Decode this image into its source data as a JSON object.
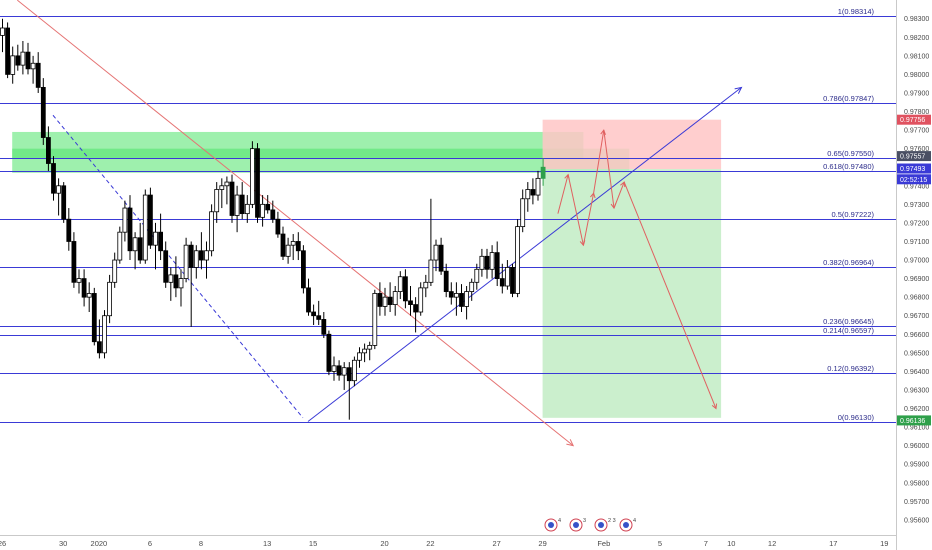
{
  "chart_data": {
    "type": "candlestick",
    "title": "",
    "xlabel": "",
    "ylabel": "",
    "ylim": [
      0.95551,
      0.98347
    ],
    "y_ticks": [
      "0.98300",
      "0.98200",
      "0.98100",
      "0.98000",
      "0.97900",
      "0.97800",
      "0.97700",
      "0.97600",
      "0.97500",
      "0.97400",
      "0.97300",
      "0.97200",
      "0.97100",
      "0.97000",
      "0.96900",
      "0.96800",
      "0.96700",
      "0.96600",
      "0.96500",
      "0.96400",
      "0.96300",
      "0.96200",
      "0.96100",
      "0.96000",
      "0.95900",
      "0.95800",
      "0.95700",
      "0.95600"
    ],
    "x_ticks": [
      {
        "label": "26",
        "bar": 0
      },
      {
        "label": "30",
        "bar": 12
      },
      {
        "label": "2020",
        "bar": 19
      },
      {
        "label": "6",
        "bar": 29
      },
      {
        "label": "8",
        "bar": 39
      },
      {
        "label": "13",
        "bar": 52
      },
      {
        "label": "15",
        "bar": 61
      },
      {
        "label": "20",
        "bar": 75
      },
      {
        "label": "22",
        "bar": 84
      },
      {
        "label": "27",
        "bar": 97
      },
      {
        "label": "29",
        "bar": 106
      },
      {
        "label": "Feb",
        "bar": 118
      },
      {
        "label": "5",
        "bar": 129
      },
      {
        "label": "7",
        "bar": 138
      },
      {
        "label": "10",
        "bar": 143
      },
      {
        "label": "12",
        "bar": 151
      },
      {
        "label": "17",
        "bar": 163
      },
      {
        "label": "19",
        "bar": 173
      }
    ],
    "candles": [
      {
        "o": 0.9821,
        "h": 0.983,
        "l": 0.9812,
        "c": 0.9825
      },
      {
        "o": 0.9825,
        "h": 0.9828,
        "l": 0.9798,
        "c": 0.98
      },
      {
        "o": 0.98,
        "h": 0.9815,
        "l": 0.9795,
        "c": 0.981
      },
      {
        "o": 0.981,
        "h": 0.9816,
        "l": 0.9802,
        "c": 0.9805
      },
      {
        "o": 0.9805,
        "h": 0.9818,
        "l": 0.98,
        "c": 0.9812
      },
      {
        "o": 0.9812,
        "h": 0.9817,
        "l": 0.98,
        "c": 0.9803
      },
      {
        "o": 0.9803,
        "h": 0.981,
        "l": 0.9795,
        "c": 0.9806
      },
      {
        "o": 0.9806,
        "h": 0.9812,
        "l": 0.979,
        "c": 0.9793
      },
      {
        "o": 0.9793,
        "h": 0.9798,
        "l": 0.9762,
        "c": 0.9766
      },
      {
        "o": 0.9766,
        "h": 0.9772,
        "l": 0.9748,
        "c": 0.9752
      },
      {
        "o": 0.9752,
        "h": 0.9756,
        "l": 0.9732,
        "c": 0.9736
      },
      {
        "o": 0.9736,
        "h": 0.9744,
        "l": 0.9724,
        "c": 0.974
      },
      {
        "o": 0.974,
        "h": 0.9742,
        "l": 0.972,
        "c": 0.9722
      },
      {
        "o": 0.9722,
        "h": 0.9728,
        "l": 0.9705,
        "c": 0.971
      },
      {
        "o": 0.971,
        "h": 0.9715,
        "l": 0.9685,
        "c": 0.9688
      },
      {
        "o": 0.9688,
        "h": 0.9695,
        "l": 0.9682,
        "c": 0.969
      },
      {
        "o": 0.969,
        "h": 0.9695,
        "l": 0.9675,
        "c": 0.968
      },
      {
        "o": 0.968,
        "h": 0.9688,
        "l": 0.9672,
        "c": 0.9682
      },
      {
        "o": 0.9682,
        "h": 0.9685,
        "l": 0.9654,
        "c": 0.9656
      },
      {
        "o": 0.9656,
        "h": 0.9668,
        "l": 0.9647,
        "c": 0.965
      },
      {
        "o": 0.965,
        "h": 0.9673,
        "l": 0.9647,
        "c": 0.967
      },
      {
        "o": 0.967,
        "h": 0.9692,
        "l": 0.9666,
        "c": 0.9688
      },
      {
        "o": 0.9688,
        "h": 0.9704,
        "l": 0.9685,
        "c": 0.97
      },
      {
        "o": 0.97,
        "h": 0.9718,
        "l": 0.9698,
        "c": 0.9715
      },
      {
        "o": 0.9715,
        "h": 0.9732,
        "l": 0.971,
        "c": 0.9728
      },
      {
        "o": 0.9728,
        "h": 0.9735,
        "l": 0.97,
        "c": 0.9705
      },
      {
        "o": 0.9705,
        "h": 0.9715,
        "l": 0.9695,
        "c": 0.9712
      },
      {
        "o": 0.9712,
        "h": 0.972,
        "l": 0.9698,
        "c": 0.97
      },
      {
        "o": 0.97,
        "h": 0.9738,
        "l": 0.9698,
        "c": 0.9735
      },
      {
        "o": 0.9735,
        "h": 0.9739,
        "l": 0.9706,
        "c": 0.9708
      },
      {
        "o": 0.9708,
        "h": 0.972,
        "l": 0.9695,
        "c": 0.9715
      },
      {
        "o": 0.9715,
        "h": 0.9725,
        "l": 0.97,
        "c": 0.9705
      },
      {
        "o": 0.9705,
        "h": 0.971,
        "l": 0.9685,
        "c": 0.9688
      },
      {
        "o": 0.9688,
        "h": 0.9696,
        "l": 0.9678,
        "c": 0.9692
      },
      {
        "o": 0.9692,
        "h": 0.9702,
        "l": 0.968,
        "c": 0.9685
      },
      {
        "o": 0.9685,
        "h": 0.9695,
        "l": 0.9675,
        "c": 0.969
      },
      {
        "o": 0.969,
        "h": 0.9712,
        "l": 0.9688,
        "c": 0.9708
      },
      {
        "o": 0.9708,
        "h": 0.971,
        "l": 0.9664,
        "c": 0.9696
      },
      {
        "o": 0.9696,
        "h": 0.9708,
        "l": 0.969,
        "c": 0.9705
      },
      {
        "o": 0.9705,
        "h": 0.9715,
        "l": 0.9695,
        "c": 0.97
      },
      {
        "o": 0.97,
        "h": 0.971,
        "l": 0.969,
        "c": 0.9705
      },
      {
        "o": 0.9705,
        "h": 0.973,
        "l": 0.9702,
        "c": 0.9726
      },
      {
        "o": 0.9726,
        "h": 0.9742,
        "l": 0.972,
        "c": 0.9738
      },
      {
        "o": 0.9738,
        "h": 0.9744,
        "l": 0.9728,
        "c": 0.974
      },
      {
        "o": 0.974,
        "h": 0.9745,
        "l": 0.973,
        "c": 0.9742
      },
      {
        "o": 0.9742,
        "h": 0.9746,
        "l": 0.972,
        "c": 0.9724
      },
      {
        "o": 0.9724,
        "h": 0.974,
        "l": 0.9715,
        "c": 0.9735
      },
      {
        "o": 0.9735,
        "h": 0.9742,
        "l": 0.9722,
        "c": 0.9725
      },
      {
        "o": 0.9725,
        "h": 0.9735,
        "l": 0.972,
        "c": 0.973
      },
      {
        "o": 0.973,
        "h": 0.9764,
        "l": 0.9728,
        "c": 0.976
      },
      {
        "o": 0.976,
        "h": 0.9763,
        "l": 0.972,
        "c": 0.9723
      },
      {
        "o": 0.9723,
        "h": 0.9735,
        "l": 0.9718,
        "c": 0.973
      },
      {
        "o": 0.973,
        "h": 0.9735,
        "l": 0.9725,
        "c": 0.9727
      },
      {
        "o": 0.9727,
        "h": 0.9732,
        "l": 0.972,
        "c": 0.9722
      },
      {
        "o": 0.9722,
        "h": 0.9726,
        "l": 0.9712,
        "c": 0.9714
      },
      {
        "o": 0.9714,
        "h": 0.9718,
        "l": 0.97,
        "c": 0.9702
      },
      {
        "o": 0.9702,
        "h": 0.9712,
        "l": 0.9698,
        "c": 0.9708
      },
      {
        "o": 0.9708,
        "h": 0.9714,
        "l": 0.97,
        "c": 0.971
      },
      {
        "o": 0.971,
        "h": 0.9715,
        "l": 0.97,
        "c": 0.9705
      },
      {
        "o": 0.9705,
        "h": 0.9708,
        "l": 0.9682,
        "c": 0.9685
      },
      {
        "o": 0.9685,
        "h": 0.969,
        "l": 0.967,
        "c": 0.9672
      },
      {
        "o": 0.9672,
        "h": 0.9676,
        "l": 0.9665,
        "c": 0.967
      },
      {
        "o": 0.967,
        "h": 0.9678,
        "l": 0.9665,
        "c": 0.9668
      },
      {
        "o": 0.9668,
        "h": 0.9672,
        "l": 0.9658,
        "c": 0.966
      },
      {
        "o": 0.966,
        "h": 0.9662,
        "l": 0.9638,
        "c": 0.964
      },
      {
        "o": 0.964,
        "h": 0.9648,
        "l": 0.9635,
        "c": 0.9643
      },
      {
        "o": 0.9643,
        "h": 0.9646,
        "l": 0.9635,
        "c": 0.9638
      },
      {
        "o": 0.9638,
        "h": 0.9645,
        "l": 0.963,
        "c": 0.9642
      },
      {
        "o": 0.9642,
        "h": 0.9645,
        "l": 0.9614,
        "c": 0.9635
      },
      {
        "o": 0.9635,
        "h": 0.9648,
        "l": 0.9632,
        "c": 0.9646
      },
      {
        "o": 0.9646,
        "h": 0.9653,
        "l": 0.9642,
        "c": 0.965
      },
      {
        "o": 0.965,
        "h": 0.9655,
        "l": 0.9645,
        "c": 0.9652
      },
      {
        "o": 0.9652,
        "h": 0.9656,
        "l": 0.9646,
        "c": 0.9654
      },
      {
        "o": 0.9654,
        "h": 0.9684,
        "l": 0.9652,
        "c": 0.9682
      },
      {
        "o": 0.9682,
        "h": 0.9688,
        "l": 0.967,
        "c": 0.9675
      },
      {
        "o": 0.9675,
        "h": 0.9685,
        "l": 0.967,
        "c": 0.968
      },
      {
        "o": 0.968,
        "h": 0.9688,
        "l": 0.9672,
        "c": 0.9676
      },
      {
        "o": 0.9676,
        "h": 0.9686,
        "l": 0.967,
        "c": 0.9683
      },
      {
        "o": 0.9683,
        "h": 0.9694,
        "l": 0.9679,
        "c": 0.9691
      },
      {
        "o": 0.9691,
        "h": 0.9695,
        "l": 0.9674,
        "c": 0.9678
      },
      {
        "o": 0.9678,
        "h": 0.9686,
        "l": 0.967,
        "c": 0.9676
      },
      {
        "o": 0.9676,
        "h": 0.968,
        "l": 0.9661,
        "c": 0.9672
      },
      {
        "o": 0.9672,
        "h": 0.9688,
        "l": 0.967,
        "c": 0.9685
      },
      {
        "o": 0.9685,
        "h": 0.9692,
        "l": 0.968,
        "c": 0.9688
      },
      {
        "o": 0.9688,
        "h": 0.9733,
        "l": 0.9686,
        "c": 0.97
      },
      {
        "o": 0.97,
        "h": 0.9711,
        "l": 0.9694,
        "c": 0.9708
      },
      {
        "o": 0.9708,
        "h": 0.9712,
        "l": 0.9692,
        "c": 0.9694
      },
      {
        "o": 0.9694,
        "h": 0.9698,
        "l": 0.968,
        "c": 0.9683
      },
      {
        "o": 0.9683,
        "h": 0.9688,
        "l": 0.9676,
        "c": 0.968
      },
      {
        "o": 0.968,
        "h": 0.9688,
        "l": 0.967,
        "c": 0.9682
      },
      {
        "o": 0.9682,
        "h": 0.9687,
        "l": 0.9672,
        "c": 0.9675
      },
      {
        "o": 0.9675,
        "h": 0.9686,
        "l": 0.9668,
        "c": 0.9683
      },
      {
        "o": 0.9683,
        "h": 0.969,
        "l": 0.9678,
        "c": 0.9688
      },
      {
        "o": 0.9688,
        "h": 0.9698,
        "l": 0.9684,
        "c": 0.9695
      },
      {
        "o": 0.9695,
        "h": 0.9706,
        "l": 0.9691,
        "c": 0.9702
      },
      {
        "o": 0.9702,
        "h": 0.9706,
        "l": 0.969,
        "c": 0.9695
      },
      {
        "o": 0.9695,
        "h": 0.9708,
        "l": 0.969,
        "c": 0.9704
      },
      {
        "o": 0.9704,
        "h": 0.971,
        "l": 0.9686,
        "c": 0.969
      },
      {
        "o": 0.969,
        "h": 0.9698,
        "l": 0.9682,
        "c": 0.9686
      },
      {
        "o": 0.9686,
        "h": 0.97,
        "l": 0.9684,
        "c": 0.9696
      },
      {
        "o": 0.9696,
        "h": 0.9698,
        "l": 0.968,
        "c": 0.9682
      },
      {
        "o": 0.9682,
        "h": 0.9722,
        "l": 0.968,
        "c": 0.9718
      },
      {
        "o": 0.9718,
        "h": 0.9738,
        "l": 0.9715,
        "c": 0.9733
      },
      {
        "o": 0.9733,
        "h": 0.9742,
        "l": 0.9726,
        "c": 0.9738
      },
      {
        "o": 0.9738,
        "h": 0.9744,
        "l": 0.973,
        "c": 0.9735
      },
      {
        "o": 0.9735,
        "h": 0.9748,
        "l": 0.9732,
        "c": 0.9744
      },
      {
        "o": 0.9744,
        "h": 0.9755,
        "l": 0.974,
        "c": 0.975
      }
    ],
    "fib_levels": [
      {
        "label": "1(0.98314)",
        "value": 0.98314
      },
      {
        "label": "0.786(0.97847)",
        "value": 0.97847
      },
      {
        "label": "0.65(0.97550)",
        "value": 0.9755
      },
      {
        "label": "0.618(0.97480)",
        "value": 0.9748
      },
      {
        "label": "0.5(0.97222)",
        "value": 0.97222
      },
      {
        "label": "0.382(0.96964)",
        "value": 0.96964
      },
      {
        "label": "0.236(0.96645)",
        "value": 0.96645
      },
      {
        "label": "0.214(0.96597)",
        "value": 0.96597
      },
      {
        "label": "0.12(0.96392)",
        "value": 0.96392
      },
      {
        "label": "0(0.96130)",
        "value": 0.9613
      }
    ],
    "supply_zone": [
      {
        "x1": 2,
        "x2": 114,
        "y1": 0.9769,
        "y2": 0.9755
      },
      {
        "x1": 2,
        "x2": 123,
        "y1": 0.976,
        "y2": 0.9747
      }
    ],
    "position": {
      "x1": 106,
      "x2": 141,
      "entry": 0.9749,
      "stop": 0.97756,
      "target": 0.9615
    },
    "trendlines": [
      {
        "type": "resistance",
        "color": "#e57373",
        "x1": 3,
        "y1": 0.984,
        "x2": 112,
        "y2": 0.96
      },
      {
        "type": "support",
        "color": "#3a3ad6",
        "x1": 60,
        "y1": 0.9613,
        "x2": 145,
        "y2": 0.9793
      },
      {
        "type": "dashed",
        "color": "#3a3ad6",
        "x1": 10,
        "y1": 0.9778,
        "x2": 59,
        "y2": 0.9615
      }
    ],
    "projection_path": [
      {
        "x": 109,
        "y": 0.9725
      },
      {
        "x": 111,
        "y": 0.9746
      },
      {
        "x": 114,
        "y": 0.9708
      },
      {
        "x": 116,
        "y": 0.9736
      },
      {
        "x": 118,
        "y": 0.977
      },
      {
        "x": 120,
        "y": 0.9728
      },
      {
        "x": 122,
        "y": 0.9742
      },
      {
        "x": 140,
        "y": 0.962
      }
    ],
    "price_tags": [
      {
        "label": "0.97756",
        "value": 0.97756,
        "color": "#e05260"
      },
      {
        "label": "0.97557",
        "value": 0.9756,
        "color": "#4a4f63"
      },
      {
        "label": "0.97493",
        "value": 0.97493,
        "color": "#3a3ad6"
      },
      {
        "label": "02:52:15",
        "value": 0.97435,
        "color": "#3a3ad6"
      },
      {
        "label": "0.96136",
        "value": 0.96136,
        "color": "#2ea04a"
      }
    ],
    "event_badges": [
      "4",
      "3",
      "2 3",
      "4"
    ],
    "colors": {
      "candle_up": "#ffffff",
      "candle_down": "#000000",
      "latest_candle": "#2ea04a",
      "fib_line": "#3a3ad6",
      "zone": "#4fe36a",
      "stop_area": "#ffc5c5",
      "target_area": "#c2ecc4"
    }
  }
}
